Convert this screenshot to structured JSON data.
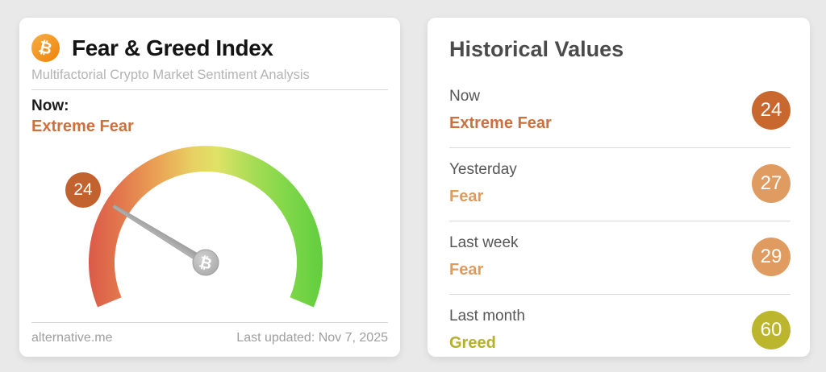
{
  "icons": {
    "bitcoin": "₿"
  },
  "colors": {
    "extreme_fear_text": "#ce6f3e",
    "fear_text": "#df9b5e",
    "greed_text": "#b6b02a",
    "badge_now": "#c2622e",
    "circle_now": "#c8682f",
    "circle_fear": "#df9b60",
    "circle_greed": "#bcb62f"
  },
  "left_card": {
    "title": "Fear & Greed Index",
    "subtitle": "Multifactorial Crypto Market Sentiment Analysis",
    "now_label": "Now:",
    "now_value": "Extreme Fear",
    "now_value_color": "#ce6f3e",
    "badge_value": "24",
    "badge_color": "#c2622e",
    "footer": {
      "source": "alternative.me",
      "last_updated": "Last updated: Nov 7, 2025"
    }
  },
  "right_card": {
    "title": "Historical Values",
    "rows": [
      {
        "label": "Now",
        "value": "Extreme Fear",
        "score": "24",
        "value_color": "#ce6f3e",
        "circle_color": "#c8682f"
      },
      {
        "label": "Yesterday",
        "value": "Fear",
        "score": "27",
        "value_color": "#df9b5e",
        "circle_color": "#df9b60"
      },
      {
        "label": "Last week",
        "value": "Fear",
        "score": "29",
        "value_color": "#df9b5e",
        "circle_color": "#df9b60"
      },
      {
        "label": "Last month",
        "value": "Greed",
        "score": "60",
        "value_color": "#b6b02a",
        "circle_color": "#bcb62f"
      }
    ]
  },
  "chart_data": {
    "type": "gauge",
    "title": "Fear & Greed Index",
    "subtitle": "Multifactorial Crypto Market Sentiment Analysis",
    "value": 24,
    "classification": "Extreme Fear",
    "min": 0,
    "max": 100,
    "start_angle": 202.5,
    "end_angle": -22.5,
    "scale_colors": [
      "#db5a48",
      "#e37b4e",
      "#eba455",
      "#e8d163",
      "#dee266",
      "#a8dc55",
      "#7fd749",
      "#62ce3e"
    ],
    "needle_color": "#a8a8a8",
    "historical": [
      {
        "period": "Now",
        "classification": "Extreme Fear",
        "value": 24
      },
      {
        "period": "Yesterday",
        "classification": "Fear",
        "value": 27
      },
      {
        "period": "Last week",
        "classification": "Fear",
        "value": 29
      },
      {
        "period": "Last month",
        "classification": "Greed",
        "value": 60
      }
    ],
    "source": "alternative.me",
    "last_updated": "Nov 7, 2025"
  }
}
